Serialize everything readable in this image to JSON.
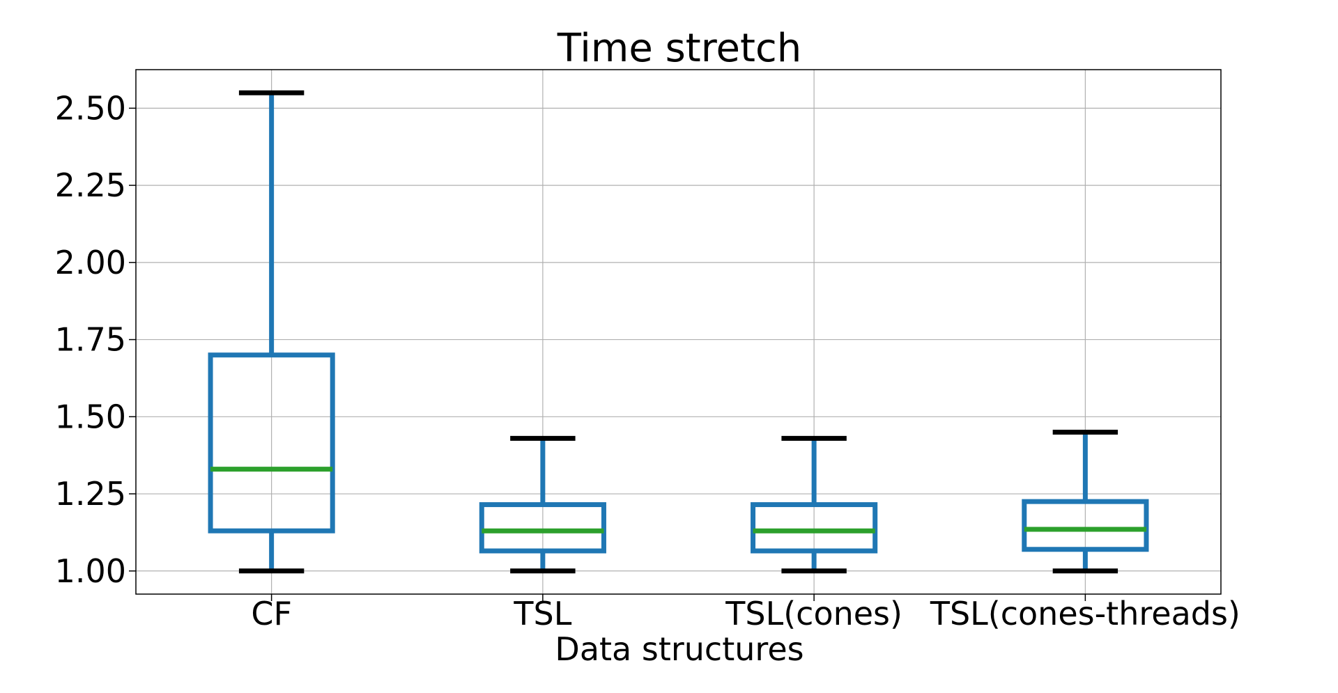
{
  "chart_data": {
    "type": "box",
    "title": "Time stretch",
    "xlabel": "Data structures",
    "ylabel": "",
    "categories": [
      "CF",
      "TSL",
      "TSL(cones)",
      "TSL(cones-threads)"
    ],
    "boxes": [
      {
        "category": "CF",
        "whisker_low": 1.0,
        "q1": 1.13,
        "median": 1.33,
        "q3": 1.7,
        "whisker_high": 2.55
      },
      {
        "category": "TSL",
        "whisker_low": 1.0,
        "q1": 1.065,
        "median": 1.13,
        "q3": 1.215,
        "whisker_high": 1.43
      },
      {
        "category": "TSL(cones)",
        "whisker_low": 1.0,
        "q1": 1.065,
        "median": 1.13,
        "q3": 1.215,
        "whisker_high": 1.43
      },
      {
        "category": "TSL(cones-threads)",
        "whisker_low": 1.0,
        "q1": 1.07,
        "median": 1.135,
        "q3": 1.225,
        "whisker_high": 1.45
      }
    ],
    "yticks": [
      "1.00",
      "1.25",
      "1.50",
      "1.75",
      "2.00",
      "2.25",
      "2.50"
    ],
    "ylim": [
      0.925,
      2.625
    ],
    "grid": true,
    "colors": {
      "box": "#1f77b4",
      "median": "#2ca02c",
      "cap": "#000000",
      "grid": "#b0b0b0",
      "axes": "#000000"
    }
  }
}
